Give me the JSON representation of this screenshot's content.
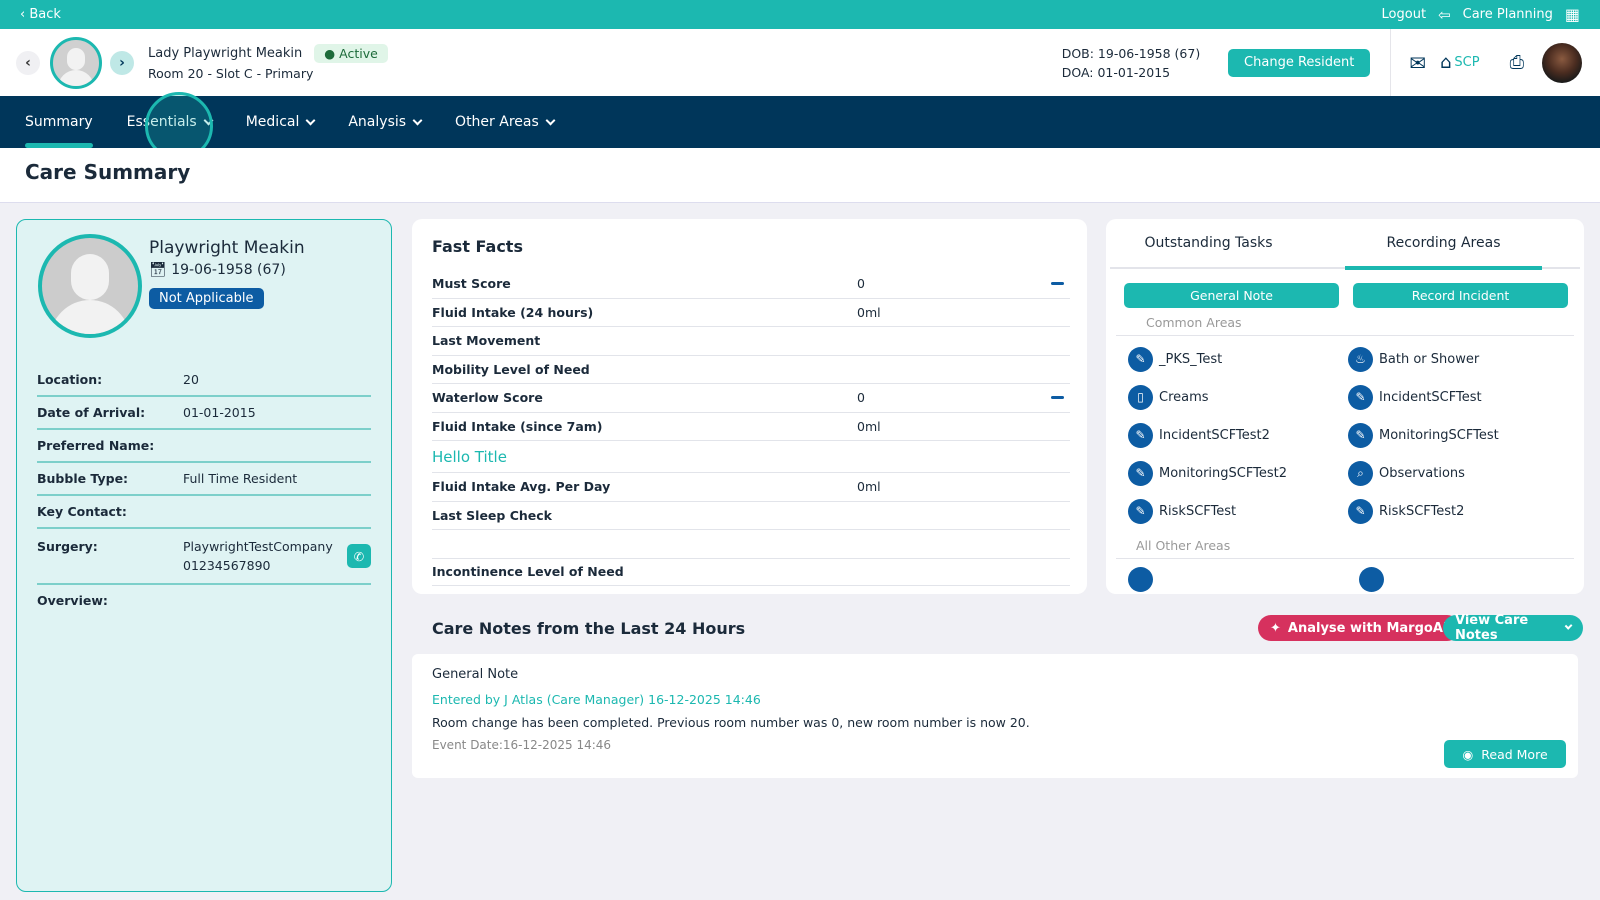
{
  "topbar": {
    "back": "‹ Back",
    "logout": "Logout",
    "care_planning": "Care Planning"
  },
  "header": {
    "resident_name": "Lady Playwright Meakin",
    "status": "Active",
    "room": "Room 20 - Slot C - Primary",
    "dob": "DOB: 19-06-1958 (67)",
    "doa": "DOA: 01-01-2015",
    "change_resident": "Change Resident",
    "scp": "SCP"
  },
  "nav": {
    "tabs": [
      {
        "label": "Summary",
        "active": true
      },
      {
        "label": "Essentials"
      },
      {
        "label": "Medical"
      },
      {
        "label": "Analysis"
      },
      {
        "label": "Other Areas"
      }
    ]
  },
  "page_title": "Care Summary",
  "profile": {
    "name": "Playwright Meakin",
    "dob": "19-06-1958 (67)",
    "badge": "Not Applicable",
    "rows": [
      {
        "k": "Location:",
        "v": "20"
      },
      {
        "k": "Date of Arrival:",
        "v": "01-01-2015"
      },
      {
        "k": "Preferred Name:",
        "v": ""
      },
      {
        "k": "Bubble Type:",
        "v": "Full Time Resident"
      },
      {
        "k": "Key Contact:",
        "v": ""
      },
      {
        "k": "Surgery:",
        "v": "PlaywrightTestCompany",
        "v2": "01234567890"
      }
    ],
    "overview_label": "Overview:"
  },
  "fast_facts": {
    "title": "Fast Facts",
    "rows": [
      {
        "k": "Must Score",
        "v": "0",
        "minus": true
      },
      {
        "k": "Fluid Intake (24 hours)",
        "v": "0ml"
      },
      {
        "k": "Last Movement",
        "v": ""
      },
      {
        "k": "Mobility Level of Need",
        "v": ""
      },
      {
        "k": "Waterlow Score",
        "v": "0",
        "minus": true
      },
      {
        "k": "Fluid Intake (since 7am)",
        "v": "0ml"
      }
    ],
    "section_title": "Hello Title",
    "rows2": [
      {
        "k": "Fluid Intake Avg. Per Day",
        "v": "0ml"
      },
      {
        "k": "Last Sleep Check",
        "v": ""
      },
      {
        "k": "",
        "v": ""
      },
      {
        "k": "Incontinence Level of Need",
        "v": ""
      }
    ]
  },
  "right_panel": {
    "tabs": [
      "Outstanding Tasks",
      "Recording Areas"
    ],
    "active_tab": "Recording Areas",
    "general_note": "General Note",
    "record_incident": "Record Incident",
    "common_label": "Common Areas",
    "common": [
      {
        "label": "_PKS_Test",
        "icon": "edit-bubble"
      },
      {
        "label": "Bath or Shower",
        "icon": "bath"
      },
      {
        "label": "Creams",
        "icon": "cream"
      },
      {
        "label": "IncidentSCFTest",
        "icon": "edit-bubble"
      },
      {
        "label": "IncidentSCFTest2",
        "icon": "edit-bubble"
      },
      {
        "label": "MonitoringSCFTest",
        "icon": "edit-bubble"
      },
      {
        "label": "MonitoringSCFTest2",
        "icon": "edit-bubble"
      },
      {
        "label": "Observations",
        "icon": "search"
      },
      {
        "label": "RiskSCFTest",
        "icon": "edit-bubble"
      },
      {
        "label": "RiskSCFTest2",
        "icon": "edit-bubble"
      }
    ],
    "other_label": "All Other Areas"
  },
  "care_notes": {
    "title": "Care Notes from the Last 24 Hours",
    "analyse": "Analyse with MargoAI",
    "view": "View Care Notes",
    "note": {
      "type": "General Note",
      "entered": "Entered by J Atlas (Care Manager) 16-12-2025 14:46",
      "body": "Room change has been completed. Previous room number was 0, new room number is now 20.",
      "event": "Event Date:16-12-2025 14:46",
      "read_more": "Read More"
    }
  },
  "colors": {
    "teal": "#1cb8b0",
    "navy": "#00365a",
    "blue": "#0d5ca3",
    "ai": "#d6315e"
  }
}
